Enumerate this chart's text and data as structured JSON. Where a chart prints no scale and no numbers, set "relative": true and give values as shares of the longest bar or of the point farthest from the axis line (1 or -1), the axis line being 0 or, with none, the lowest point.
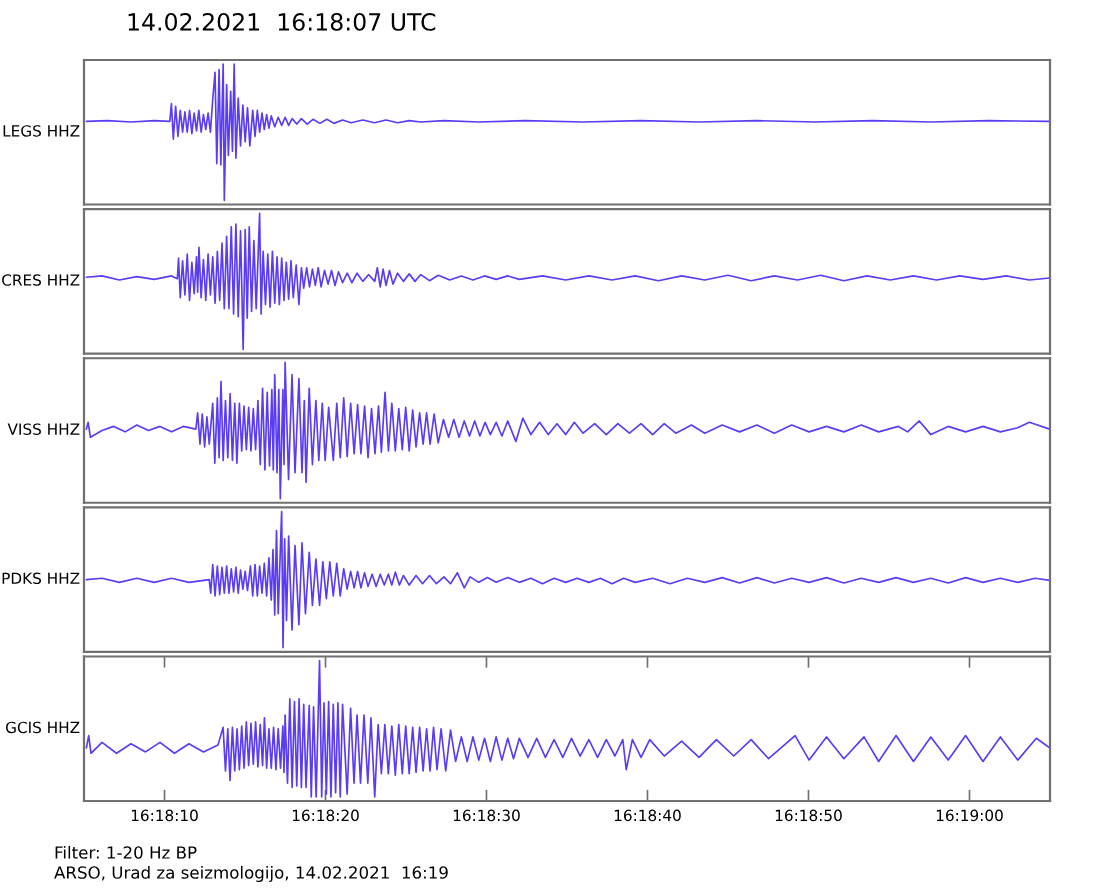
{
  "chart_data": [
    {
      "type": "line",
      "title": "14.02.2021  16:18:07 UTC",
      "ylabel": "LEGS HHZ",
      "relative": true,
      "color": "#5b3cf5",
      "xlim": [
        16.301389,
        16.318056
      ],
      "tick_labels": false,
      "x": [
        16.30143,
        16.3018,
        16.3022,
        16.3026,
        16.30287,
        16.302897,
        16.30293,
        16.30297,
        16.30301,
        16.30305,
        16.30309,
        16.30313,
        16.30317,
        16.30321,
        16.30325,
        16.30329,
        16.30333,
        16.30337,
        16.30341,
        16.30345,
        16.30349,
        16.30353,
        16.30357,
        16.30361,
        16.30365,
        16.30368,
        16.30372,
        16.30375,
        16.30379,
        16.30381,
        16.30385,
        16.30388,
        16.30392,
        16.30395,
        16.30398,
        16.30401,
        16.30405,
        16.30409,
        16.30413,
        16.30417,
        16.30421,
        16.30425,
        16.3043,
        16.30434,
        16.30438,
        16.30442,
        16.30446,
        16.3045,
        16.30454,
        16.30458,
        16.30462,
        16.30468,
        16.30474,
        16.3048,
        16.30486,
        16.30492,
        16.30498,
        16.30506,
        16.30514,
        16.30524,
        16.30534,
        16.30546,
        16.30558,
        16.3057,
        16.30585,
        16.306,
        16.3062,
        16.3064,
        16.3066,
        16.3068,
        16.307,
        16.3072,
        16.3076,
        16.3082,
        16.309,
        16.31,
        16.311,
        16.312,
        16.313,
        16.314,
        16.315,
        16.316,
        16.317,
        16.31805
      ],
      "values": [
        0.58,
        0.585,
        0.575,
        0.585,
        0.58,
        0.71,
        0.45,
        0.69,
        0.47,
        0.66,
        0.5,
        0.65,
        0.5,
        0.66,
        0.49,
        0.64,
        0.51,
        0.66,
        0.5,
        0.63,
        0.52,
        0.64,
        0.5,
        0.74,
        0.94,
        0.27,
        0.96,
        0.26,
        1.0,
        0.0,
        0.85,
        0.33,
        0.8,
        0.36,
        1.0,
        0.31,
        0.75,
        0.4,
        0.7,
        0.43,
        0.68,
        0.4,
        0.66,
        0.47,
        0.66,
        0.5,
        0.64,
        0.52,
        0.63,
        0.53,
        0.62,
        0.54,
        0.61,
        0.55,
        0.61,
        0.55,
        0.6,
        0.56,
        0.6,
        0.56,
        0.595,
        0.565,
        0.595,
        0.565,
        0.59,
        0.57,
        0.59,
        0.57,
        0.59,
        0.57,
        0.585,
        0.575,
        0.585,
        0.575,
        0.585,
        0.575,
        0.585,
        0.575,
        0.585,
        0.575,
        0.585,
        0.575,
        0.585,
        0.58
      ]
    },
    {
      "type": "line",
      "ylabel": "CRES HHZ",
      "relative": true,
      "color": "#5b3cf5",
      "xlim": [
        16.301389,
        16.318056
      ],
      "tick_labels": false,
      "x": [
        16.30143,
        16.3017,
        16.302,
        16.3023,
        16.3026,
        16.3029,
        16.303,
        16.30302,
        16.30305,
        16.30309,
        16.30313,
        16.30317,
        16.30321,
        16.30325,
        16.30329,
        16.30333,
        16.30335,
        16.303373,
        16.30341,
        16.30345,
        16.30349,
        16.30353,
        16.30357,
        16.30361,
        16.30365,
        16.30369,
        16.30373,
        16.30377,
        16.30381,
        16.30385,
        16.30389,
        16.30393,
        16.30397,
        16.30401,
        16.30405,
        16.30409,
        16.304135,
        16.30417,
        16.304205,
        16.30424,
        16.30428,
        16.30432,
        16.30436,
        16.304419,
        16.304445,
        16.30448,
        16.30452,
        16.30456,
        16.3046,
        16.30464,
        16.30468,
        16.30472,
        16.30476,
        16.3048,
        16.30484,
        16.30488,
        16.30492,
        16.30496,
        16.305,
        16.30505,
        16.305097,
        16.30514,
        16.30518,
        16.30523,
        16.30528,
        16.30533,
        16.30538,
        16.30543,
        16.30548,
        16.30554,
        16.3056,
        16.30566,
        16.30572,
        16.30578,
        16.30585,
        16.30593,
        16.30601,
        16.3061,
        16.3062,
        16.3063,
        16.306405,
        16.30645,
        16.3065,
        16.30655,
        16.3066,
        16.30666,
        16.30672,
        16.3068,
        16.3069,
        16.307,
        16.3071,
        16.3072,
        16.30735,
        16.3075,
        16.3077,
        16.3079,
        16.3081,
        16.3083,
        16.3085,
        16.3087,
        16.3089,
        16.3093,
        16.3097,
        16.3101,
        16.3105,
        16.3109,
        16.3113,
        16.3117,
        16.3121,
        16.3125,
        16.3129,
        16.3133,
        16.3137,
        16.3141,
        16.3145,
        16.3149,
        16.3153,
        16.3157,
        16.3161,
        16.3165,
        16.3169,
        16.3173,
        16.3177,
        16.31805
      ],
      "values": [
        0.53,
        0.54,
        0.51,
        0.535,
        0.515,
        0.54,
        0.52,
        0.67,
        0.38,
        0.65,
        0.4,
        0.7,
        0.36,
        0.64,
        0.41,
        0.68,
        0.42,
        0.75,
        0.38,
        0.66,
        0.36,
        0.7,
        0.4,
        0.68,
        0.34,
        0.72,
        0.36,
        0.78,
        0.3,
        0.83,
        0.3,
        0.9,
        0.26,
        0.92,
        0.24,
        0.87,
        0.0,
        0.88,
        0.23,
        0.9,
        0.28,
        0.8,
        0.3,
        1.0,
        0.26,
        0.72,
        0.33,
        0.7,
        0.31,
        0.72,
        0.34,
        0.68,
        0.33,
        0.67,
        0.36,
        0.64,
        0.37,
        0.65,
        0.38,
        0.62,
        0.33,
        0.6,
        0.45,
        0.6,
        0.46,
        0.59,
        0.47,
        0.6,
        0.46,
        0.58,
        0.48,
        0.58,
        0.47,
        0.57,
        0.49,
        0.56,
        0.49,
        0.56,
        0.5,
        0.55,
        0.5,
        0.6,
        0.46,
        0.59,
        0.47,
        0.58,
        0.48,
        0.56,
        0.5,
        0.555,
        0.5,
        0.55,
        0.505,
        0.545,
        0.51,
        0.54,
        0.51,
        0.54,
        0.515,
        0.54,
        0.515,
        0.54,
        0.51,
        0.54,
        0.51,
        0.54,
        0.505,
        0.54,
        0.51,
        0.545,
        0.505,
        0.54,
        0.51,
        0.545,
        0.505,
        0.54,
        0.51,
        0.54,
        0.51,
        0.54,
        0.515,
        0.54,
        0.51,
        0.525
      ]
    },
    {
      "type": "line",
      "ylabel": "VISS HHZ",
      "relative": true,
      "color": "#5b3cf5",
      "xlim": [
        16.301389,
        16.318056
      ],
      "tick_labels": false,
      "x": [
        16.30143,
        16.30146,
        16.3015,
        16.3017,
        16.3019,
        16.3021,
        16.3023,
        16.3025,
        16.3027,
        16.3029,
        16.3031,
        16.30332,
        16.30335,
        16.30339,
        16.30343,
        16.30347,
        16.30351,
        16.30355,
        16.30361,
        16.303646,
        16.30369,
        16.30372,
        16.303753,
        16.30379,
        16.30383,
        16.30387,
        16.30391,
        16.30395,
        16.30399,
        16.304027,
        16.30407,
        16.30411,
        16.30415,
        16.30419,
        16.30423,
        16.30427,
        16.30431,
        16.30435,
        16.30439,
        16.30443,
        16.30447,
        16.30451,
        16.30455,
        16.30459,
        16.30463,
        16.304655,
        16.30468,
        16.30472,
        16.30475,
        16.304776,
        16.30482,
        16.30484,
        16.304859,
        16.304918,
        16.304978,
        16.30503,
        16.305097,
        16.30515,
        16.30519,
        16.30522,
        16.305275,
        16.30533,
        16.30539,
        16.30544,
        16.3055,
        16.30555,
        16.30561,
        16.305691,
        16.30575,
        16.30581,
        16.30587,
        16.30593,
        16.30599,
        16.30605,
        16.30611,
        16.306167,
        16.30623,
        16.30629,
        16.30635,
        16.30641,
        16.30647,
        16.30652,
        16.306583,
        16.306642,
        16.3067,
        16.30676,
        16.30682,
        16.30688,
        16.30694,
        16.307,
        16.30706,
        16.307118,
        16.30718,
        16.30724,
        16.3073,
        16.30736,
        16.30743,
        16.3075,
        16.30759,
        16.30768,
        16.30777,
        16.30786,
        16.30795,
        16.30804,
        16.30813,
        16.30822,
        16.30831,
        16.3084,
        16.3085,
        16.3086,
        16.3087,
        16.30884,
        16.30896,
        16.3091,
        16.30925,
        16.3094,
        16.30955,
        16.3097,
        16.30985,
        16.31,
        16.3102,
        16.3104,
        16.3106,
        16.3108,
        16.311,
        16.3112,
        16.3114,
        16.3116,
        16.31187,
        16.3121,
        16.3124,
        16.3127,
        16.313,
        16.3133,
        16.3136,
        16.3139,
        16.3142,
        16.3145,
        16.3148,
        16.3151,
        16.31544,
        16.3156,
        16.3158,
        16.316,
        16.3163,
        16.3166,
        16.3169,
        16.3172,
        16.3175,
        16.3177,
        16.31805
      ],
      "values": [
        0.51,
        0.56,
        0.45,
        0.5,
        0.53,
        0.49,
        0.54,
        0.5,
        0.53,
        0.49,
        0.53,
        0.51,
        0.63,
        0.4,
        0.62,
        0.38,
        0.6,
        0.4,
        0.7,
        0.26,
        0.74,
        0.3,
        0.86,
        0.28,
        0.72,
        0.3,
        0.77,
        0.28,
        0.7,
        0.26,
        0.7,
        0.35,
        0.68,
        0.36,
        0.67,
        0.35,
        0.66,
        0.36,
        0.72,
        0.25,
        0.81,
        0.21,
        0.78,
        0.24,
        0.8,
        0.21,
        0.91,
        0.19,
        0.8,
        0.0,
        0.8,
        0.25,
        1.0,
        0.14,
        0.91,
        0.19,
        0.88,
        0.19,
        0.72,
        0.12,
        0.81,
        0.25,
        0.72,
        0.28,
        0.7,
        0.28,
        0.67,
        0.28,
        0.7,
        0.3,
        0.74,
        0.31,
        0.7,
        0.33,
        0.69,
        0.33,
        0.68,
        0.3,
        0.66,
        0.33,
        0.68,
        0.34,
        0.78,
        0.35,
        0.7,
        0.35,
        0.66,
        0.36,
        0.67,
        0.35,
        0.65,
        0.38,
        0.63,
        0.4,
        0.63,
        0.4,
        0.62,
        0.41,
        0.58,
        0.45,
        0.58,
        0.45,
        0.57,
        0.46,
        0.57,
        0.46,
        0.56,
        0.47,
        0.56,
        0.46,
        0.57,
        0.42,
        0.59,
        0.47,
        0.56,
        0.47,
        0.55,
        0.47,
        0.56,
        0.48,
        0.55,
        0.47,
        0.55,
        0.48,
        0.55,
        0.47,
        0.55,
        0.48,
        0.54,
        0.48,
        0.54,
        0.49,
        0.54,
        0.48,
        0.54,
        0.49,
        0.53,
        0.49,
        0.54,
        0.49,
        0.53,
        0.49,
        0.57,
        0.47,
        0.53,
        0.49,
        0.53,
        0.49,
        0.52,
        0.56,
        0.51
      ]
    },
    {
      "type": "line",
      "ylabel": "PDKS HHZ",
      "relative": true,
      "color": "#5b3cf5",
      "xlim": [
        16.301389,
        16.318056
      ],
      "tick_labels": false,
      "x": [
        16.30143,
        16.3017,
        16.302,
        16.3023,
        16.3026,
        16.3029,
        16.3032,
        16.30355,
        16.303575,
        16.30361,
        16.30365,
        16.30369,
        16.30373,
        16.30377,
        16.30381,
        16.30385,
        16.30389,
        16.30393,
        16.30397,
        16.30401,
        16.30405,
        16.30409,
        16.30413,
        16.30417,
        16.30421,
        16.30426,
        16.3043,
        16.30434,
        16.30438,
        16.30442,
        16.30446,
        16.3045,
        16.30454,
        16.30458,
        16.30462,
        16.30465,
        16.30468,
        16.30471,
        16.30474,
        16.304799,
        16.304823,
        16.30485,
        16.304883,
        16.30492,
        16.304978,
        16.30503,
        16.305097,
        16.30515,
        16.30521,
        16.305275,
        16.30533,
        16.30539,
        16.305453,
        16.30551,
        16.30557,
        16.30563,
        16.30569,
        16.30575,
        16.30581,
        16.30587,
        16.305929,
        16.30599,
        16.30605,
        16.30611,
        16.306167,
        16.30623,
        16.30629,
        16.30636,
        16.30643,
        16.3065,
        16.30657,
        16.30664,
        16.3067,
        16.306761,
        16.30683,
        16.3069,
        16.307,
        16.307118,
        16.30723,
        16.30735,
        16.30747,
        16.3076,
        16.307713,
        16.307831,
        16.30795,
        16.30805,
        16.3082,
        16.30835,
        16.3085,
        16.3087,
        16.3089,
        16.3091,
        16.3093,
        16.3095,
        16.3097,
        16.3099,
        16.3101,
        16.3103,
        16.3105,
        16.3107,
        16.3109,
        16.3112,
        16.3115,
        16.3118,
        16.3121,
        16.3124,
        16.3127,
        16.313,
        16.3133,
        16.3136,
        16.3139,
        16.3142,
        16.3145,
        16.3148,
        16.3151,
        16.3154,
        16.3157,
        16.316,
        16.3163,
        16.3166,
        16.3169,
        16.3172,
        16.3175,
        16.3178,
        16.31805
      ],
      "values": [
        0.5,
        0.51,
        0.48,
        0.51,
        0.48,
        0.51,
        0.48,
        0.5,
        0.4,
        0.61,
        0.38,
        0.6,
        0.39,
        0.59,
        0.4,
        0.6,
        0.4,
        0.58,
        0.41,
        0.59,
        0.4,
        0.57,
        0.43,
        0.56,
        0.42,
        0.6,
        0.38,
        0.61,
        0.38,
        0.6,
        0.4,
        0.62,
        0.38,
        0.66,
        0.35,
        0.72,
        0.24,
        0.86,
        0.25,
        1.0,
        0.0,
        0.8,
        0.2,
        0.82,
        0.13,
        0.75,
        0.17,
        0.77,
        0.25,
        0.7,
        0.31,
        0.65,
        0.31,
        0.63,
        0.36,
        0.63,
        0.38,
        0.62,
        0.38,
        0.58,
        0.43,
        0.56,
        0.44,
        0.56,
        0.44,
        0.55,
        0.45,
        0.54,
        0.45,
        0.54,
        0.46,
        0.54,
        0.46,
        0.555,
        0.46,
        0.53,
        0.46,
        0.53,
        0.47,
        0.53,
        0.47,
        0.52,
        0.47,
        0.55,
        0.44,
        0.52,
        0.48,
        0.515,
        0.48,
        0.515,
        0.48,
        0.51,
        0.47,
        0.51,
        0.48,
        0.51,
        0.48,
        0.51,
        0.47,
        0.51,
        0.48,
        0.51,
        0.47,
        0.51,
        0.48,
        0.515,
        0.475,
        0.515,
        0.475,
        0.51,
        0.48,
        0.515,
        0.475,
        0.51,
        0.48,
        0.515,
        0.48,
        0.51,
        0.475,
        0.515,
        0.48,
        0.51,
        0.48,
        0.51,
        0.495
      ]
    },
    {
      "type": "line",
      "ylabel": "GCIS HHZ",
      "relative": true,
      "color": "#5b3cf5",
      "xlim": [
        16.301389,
        16.318056
      ],
      "tick_labels": "x",
      "xticks": [
        {
          "value": 16.302778,
          "label": "16:18:10"
        },
        {
          "value": 16.305556,
          "label": "16:18:20"
        },
        {
          "value": 16.308333,
          "label": "16:18:30"
        },
        {
          "value": 16.311111,
          "label": "16:18:40"
        },
        {
          "value": 16.313889,
          "label": "16:18:50"
        },
        {
          "value": 16.316667,
          "label": "16:19:00"
        }
      ],
      "annotations": [
        "Filter: 1-20 Hz BP",
        "ARSO, Urad za seizmologijo, 14.02.2021  16:19"
      ],
      "x": [
        16.30143,
        16.30147,
        16.30151,
        16.3017,
        16.30195,
        16.3022,
        16.30245,
        16.3027,
        16.30295,
        16.3032,
        16.30345,
        16.3037,
        16.303789,
        16.30383,
        16.30387,
        16.303908,
        16.30395,
        16.30399,
        16.30403,
        16.30407,
        16.30411,
        16.30415,
        16.30419,
        16.30423,
        16.30427,
        16.30431,
        16.30435,
        16.30439,
        16.30443,
        16.30447,
        16.304502,
        16.30454,
        16.30458,
        16.30462,
        16.30466,
        16.3047,
        16.30474,
        16.30478,
        16.30482,
        16.30484,
        16.304859,
        16.3049,
        16.30494,
        16.30498,
        16.30502,
        16.30506,
        16.3051,
        16.30514,
        16.30518,
        16.30522,
        16.305275,
        16.30531,
        16.30535,
        16.305394,
        16.305453,
        16.30549,
        16.30553,
        16.30557,
        16.30561,
        16.30565,
        16.30569,
        16.30573,
        16.30577,
        16.30581,
        16.30585,
        16.305929,
        16.305989,
        16.306048,
        16.3061,
        16.30616,
        16.30622,
        16.306286,
        16.30634,
        16.306405,
        16.306464,
        16.30652,
        16.30658,
        16.30664,
        16.3067,
        16.30676,
        16.30682,
        16.30688,
        16.30694,
        16.307,
        16.30706,
        16.307118,
        16.30718,
        16.30724,
        16.3073,
        16.30736,
        16.30742,
        16.30748,
        16.30755,
        16.30763,
        16.307713,
        16.3078,
        16.3079,
        16.308,
        16.3081,
        16.3082,
        16.3083,
        16.3084,
        16.3085,
        16.3086,
        16.3087,
        16.3088,
        16.3089,
        16.30905,
        16.3092,
        16.30935,
        16.3095,
        16.30965,
        16.3098,
        16.30995,
        16.3101,
        16.31025,
        16.3104,
        16.31055,
        16.310685,
        16.310745,
        16.31085,
        16.311,
        16.31115,
        16.3114,
        16.3117,
        16.312,
        16.3123,
        16.3126,
        16.3129,
        16.3132,
        16.313658,
        16.3139,
        16.3142,
        16.3145,
        16.314847,
        16.3151,
        16.3154,
        16.3157,
        16.316,
        16.3163,
        16.3166,
        16.3169,
        16.3172,
        16.3175,
        16.31782,
        16.31805
      ],
      "values": [
        0.36,
        0.45,
        0.32,
        0.4,
        0.32,
        0.39,
        0.33,
        0.4,
        0.32,
        0.39,
        0.33,
        0.38,
        0.51,
        0.19,
        0.5,
        0.12,
        0.51,
        0.19,
        0.5,
        0.2,
        0.52,
        0.21,
        0.55,
        0.23,
        0.54,
        0.24,
        0.55,
        0.22,
        0.53,
        0.23,
        0.58,
        0.21,
        0.5,
        0.21,
        0.51,
        0.2,
        0.5,
        0.21,
        0.52,
        0.18,
        0.6,
        0.1,
        0.72,
        0.07,
        0.7,
        0.08,
        0.72,
        0.07,
        0.68,
        0.07,
        0.67,
        0.0,
        0.66,
        0.0,
        1.0,
        0.0,
        0.69,
        0.02,
        0.7,
        0.0,
        0.68,
        0.03,
        0.69,
        0.0,
        0.68,
        0.02,
        0.65,
        0.1,
        0.6,
        0.1,
        0.6,
        0.1,
        0.58,
        0.0,
        0.53,
        0.17,
        0.53,
        0.17,
        0.52,
        0.16,
        0.53,
        0.17,
        0.52,
        0.17,
        0.51,
        0.18,
        0.51,
        0.19,
        0.5,
        0.19,
        0.51,
        0.2,
        0.5,
        0.19,
        0.49,
        0.26,
        0.44,
        0.26,
        0.44,
        0.27,
        0.43,
        0.26,
        0.44,
        0.27,
        0.43,
        0.28,
        0.43,
        0.29,
        0.43,
        0.29,
        0.42,
        0.29,
        0.43,
        0.3,
        0.42,
        0.29,
        0.42,
        0.3,
        0.42,
        0.2,
        0.42,
        0.29,
        0.42,
        0.3,
        0.41,
        0.29,
        0.42,
        0.3,
        0.42,
        0.28,
        0.45,
        0.27,
        0.44,
        0.28,
        0.44,
        0.26,
        0.45,
        0.26,
        0.44,
        0.27,
        0.45,
        0.26,
        0.44,
        0.27,
        0.43,
        0.36
      ]
    }
  ]
}
